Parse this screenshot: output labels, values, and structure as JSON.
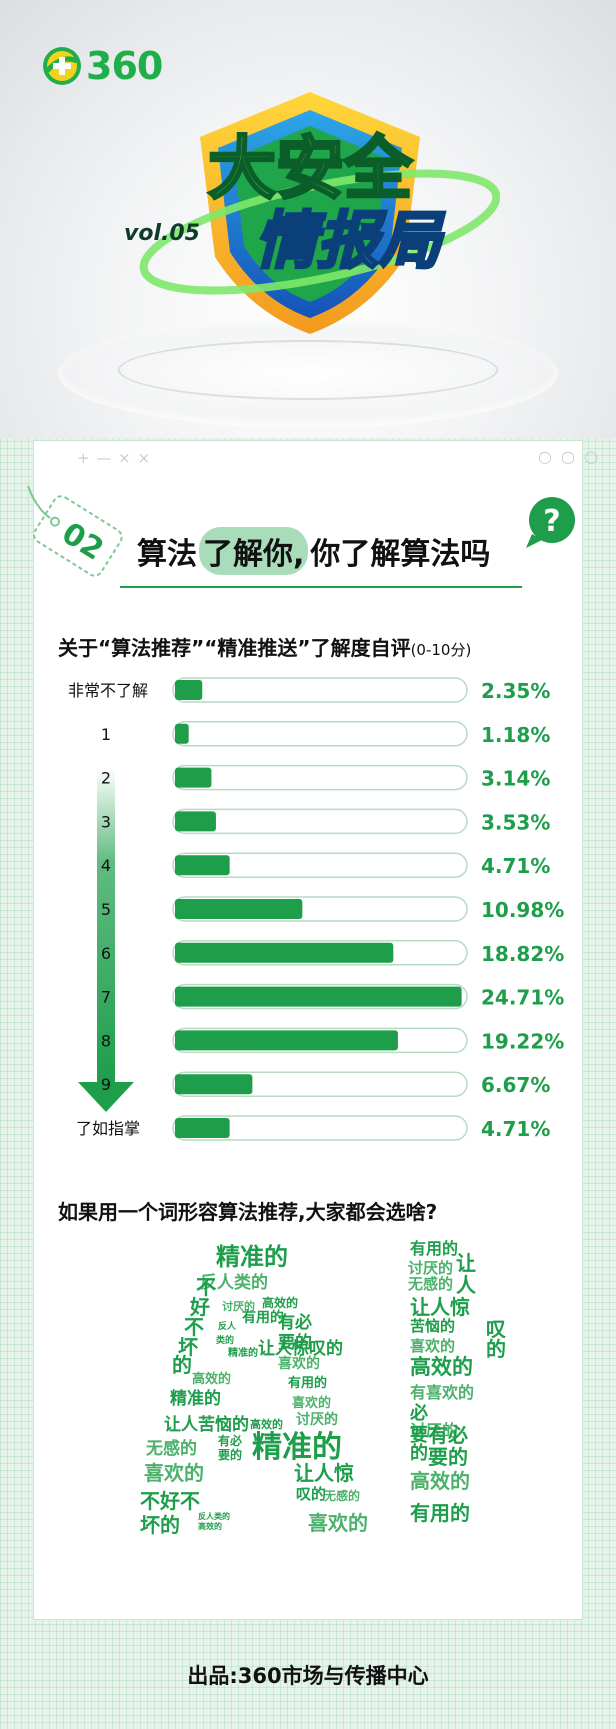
{
  "brand": {
    "logo_text": "360"
  },
  "emblem": {
    "line1": "大安全",
    "line2": "情报局",
    "vol": "vol.05"
  },
  "card": {
    "deco_left": "+ — × ×",
    "deco_right": "○ ○ ○"
  },
  "section": {
    "number": "02",
    "title_pre": "算法",
    "title_highlight": "了解你,",
    "title_post": "你了解算法吗",
    "question_mark": "?"
  },
  "survey": {
    "question": "关于“算法推荐”“精准推送”了解度自评",
    "range_note": "(0-10分)"
  },
  "chart_data": {
    "type": "bar",
    "orientation": "horizontal",
    "categories": [
      "非常不了解",
      "1",
      "2",
      "3",
      "4",
      "5",
      "6",
      "7",
      "8",
      "9",
      "了如指掌"
    ],
    "values": [
      2.35,
      1.18,
      3.14,
      3.53,
      4.71,
      10.98,
      18.82,
      24.71,
      19.22,
      6.67,
      4.71
    ],
    "value_labels": [
      "2.35%",
      "1.18%",
      "3.14%",
      "3.53%",
      "4.71%",
      "10.98%",
      "18.82%",
      "24.71%",
      "19.22%",
      "6.67%",
      "4.71%"
    ],
    "unit": "%",
    "xlim": [
      0,
      25
    ],
    "colors": {
      "bar": "#1e9e4b",
      "track_border": "#b7dcc2",
      "label": "#1e9e4b",
      "arrow": "#1e9e4b"
    }
  },
  "wordcloud": {
    "question": "如果用一个词形容算法推荐,大家都会选啥?",
    "words": [
      {
        "t": "精准的",
        "s": 24,
        "c": "#1e9e4b"
      },
      {
        "t": "反人类的",
        "s": 17,
        "c": "#4cb26b"
      },
      {
        "t": "不",
        "s": 20,
        "c": "#1e9e4b"
      },
      {
        "t": "好",
        "s": 20,
        "c": "#1e9e4b"
      },
      {
        "t": "不",
        "s": 20,
        "c": "#1e9e4b"
      },
      {
        "t": "坏",
        "s": 20,
        "c": "#1e9e4b"
      },
      {
        "t": "的",
        "s": 20,
        "c": "#1e9e4b"
      },
      {
        "t": "讨厌的",
        "s": 11,
        "c": "#4cb26b"
      },
      {
        "t": "高效的",
        "s": 12,
        "c": "#1e9e4b"
      },
      {
        "t": "反人",
        "s": 9,
        "c": "#1e9e4b"
      },
      {
        "t": "类的",
        "s": 9,
        "c": "#1e9e4b"
      },
      {
        "t": "精准的",
        "s": 10,
        "c": "#1e9e4b"
      },
      {
        "t": "有用的",
        "s": 14,
        "c": "#1e9e4b"
      },
      {
        "t": "高效的",
        "s": 13,
        "c": "#4cb26b"
      },
      {
        "t": "有必",
        "s": 17,
        "c": "#1e9e4b"
      },
      {
        "t": "要的",
        "s": 17,
        "c": "#1e9e4b"
      },
      {
        "t": "让人惊叹的",
        "s": 17,
        "c": "#1e9e4b"
      },
      {
        "t": "喜欢的",
        "s": 14,
        "c": "#4cb26b"
      },
      {
        "t": "有用的",
        "s": 13,
        "c": "#1e9e4b"
      },
      {
        "t": "精准的",
        "s": 17,
        "c": "#1e9e4b"
      },
      {
        "t": "喜欢的",
        "s": 13,
        "c": "#4cb26b"
      },
      {
        "t": "让人苦恼的",
        "s": 17,
        "c": "#1e9e4b"
      },
      {
        "t": "高效的",
        "s": 11,
        "c": "#1e9e4b"
      },
      {
        "t": "讨厌的",
        "s": 14,
        "c": "#4cb26b"
      },
      {
        "t": "无感的",
        "s": 17,
        "c": "#4cb26b"
      },
      {
        "t": "有必",
        "s": 12,
        "c": "#1e9e4b"
      },
      {
        "t": "要的",
        "s": 12,
        "c": "#1e9e4b"
      },
      {
        "t": "精准的",
        "s": 30,
        "c": "#1e9e4b"
      },
      {
        "t": "喜欢的",
        "s": 20,
        "c": "#4cb26b"
      },
      {
        "t": "让人惊",
        "s": 20,
        "c": "#1e9e4b"
      },
      {
        "t": "不好不",
        "s": 20,
        "c": "#1e9e4b"
      },
      {
        "t": "叹的",
        "s": 15,
        "c": "#1e9e4b"
      },
      {
        "t": "无感的",
        "s": 12,
        "c": "#4cb26b"
      },
      {
        "t": "坏的",
        "s": 20,
        "c": "#1e9e4b"
      },
      {
        "t": "反人类的",
        "s": 8,
        "c": "#1e9e4b"
      },
      {
        "t": "高效的",
        "s": 8,
        "c": "#1e9e4b"
      },
      {
        "t": "喜欢的",
        "s": 20,
        "c": "#4cb26b"
      },
      {
        "t": "有用的",
        "s": 16,
        "c": "#1e9e4b"
      },
      {
        "t": "让",
        "s": 20,
        "c": "#1e9e4b"
      },
      {
        "t": "讨厌的",
        "s": 15,
        "c": "#4cb26b"
      },
      {
        "t": "人",
        "s": 20,
        "c": "#1e9e4b"
      },
      {
        "t": "无感的",
        "s": 15,
        "c": "#4cb26b"
      },
      {
        "t": "让人惊",
        "s": 20,
        "c": "#1e9e4b"
      },
      {
        "t": "苦恼的",
        "s": 15,
        "c": "#1e9e4b"
      },
      {
        "t": "叹",
        "s": 20,
        "c": "#1e9e4b"
      },
      {
        "t": "喜欢的",
        "s": 15,
        "c": "#4cb26b"
      },
      {
        "t": "的",
        "s": 20,
        "c": "#1e9e4b"
      },
      {
        "t": "高效的",
        "s": 21,
        "c": "#1e9e4b"
      },
      {
        "t": "有喜欢的",
        "s": 16,
        "c": "#4cb26b"
      },
      {
        "t": "必",
        "s": 18,
        "c": "#1e9e4b"
      },
      {
        "t": "讨厌的",
        "s": 16,
        "c": "#4cb26b"
      },
      {
        "t": "要",
        "s": 18,
        "c": "#1e9e4b"
      },
      {
        "t": "有必",
        "s": 20,
        "c": "#1e9e4b"
      },
      {
        "t": "的",
        "s": 18,
        "c": "#1e9e4b"
      },
      {
        "t": "要的",
        "s": 20,
        "c": "#1e9e4b"
      },
      {
        "t": "高效的",
        "s": 20,
        "c": "#4cb26b"
      },
      {
        "t": "有用的",
        "s": 20,
        "c": "#1e9e4b"
      }
    ]
  },
  "footer": {
    "credit": "出品:360市场与传播中心"
  }
}
